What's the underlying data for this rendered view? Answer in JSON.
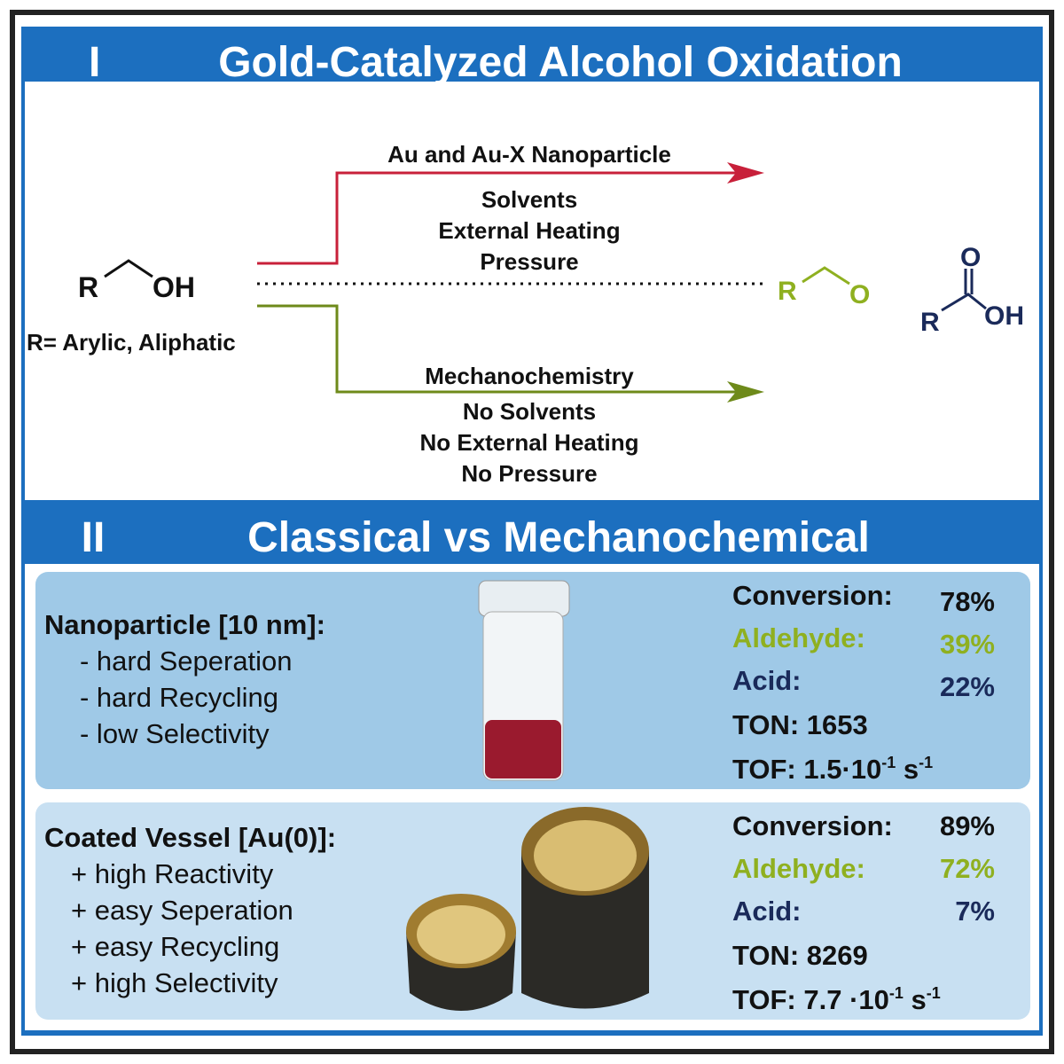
{
  "section1": {
    "numeral": "I",
    "title": "Gold-Catalyzed Alcohol Oxidation",
    "reactant": {
      "r": "R",
      "oh": "OH",
      "note": "R= Arylic, Aliphatic"
    },
    "classical": {
      "catalyst": "Au and Au-X Nanoparticle",
      "conditions": [
        "Solvents",
        "External Heating",
        "Pressure"
      ]
    },
    "mechano": {
      "method": "Mechanochemistry",
      "conditions": [
        "No Solvents",
        "No External Heating",
        "No Pressure"
      ]
    },
    "aldehyde": {
      "r": "R",
      "o": "O"
    },
    "acid": {
      "r": "R",
      "o": "O",
      "oh": "OH"
    }
  },
  "section2": {
    "numeral": "II",
    "title": "Classical vs Mechanochemical",
    "panels": [
      {
        "heading": "Nanoparticle [10 nm]:",
        "points": [
          "- hard Seperation",
          "- hard Recycling",
          "- low Selectivity"
        ],
        "results": [
          {
            "label": "Conversion:",
            "value": "78%"
          },
          {
            "label": "Aldehyde:",
            "value": "39%"
          },
          {
            "label": "Acid:",
            "value": "22%"
          }
        ],
        "ton": "TON: 1653",
        "tof": [
          "TOF: 1.5·10",
          "-1",
          " s",
          "-1"
        ]
      },
      {
        "heading": "Coated Vessel [Au(0)]:",
        "points": [
          "+ high Reactivity",
          "+ easy Seperation",
          "+ easy Recycling",
          "+ high Selectivity"
        ],
        "results": [
          {
            "label": "Conversion:",
            "value": "89%"
          },
          {
            "label": "Aldehyde:",
            "value": "72%"
          },
          {
            "label": "Acid:",
            "value": "7%"
          }
        ],
        "ton": "TON: 8269",
        "tof": [
          "TOF: 7.7 ·10",
          "-1",
          " s",
          "-1"
        ]
      }
    ]
  }
}
